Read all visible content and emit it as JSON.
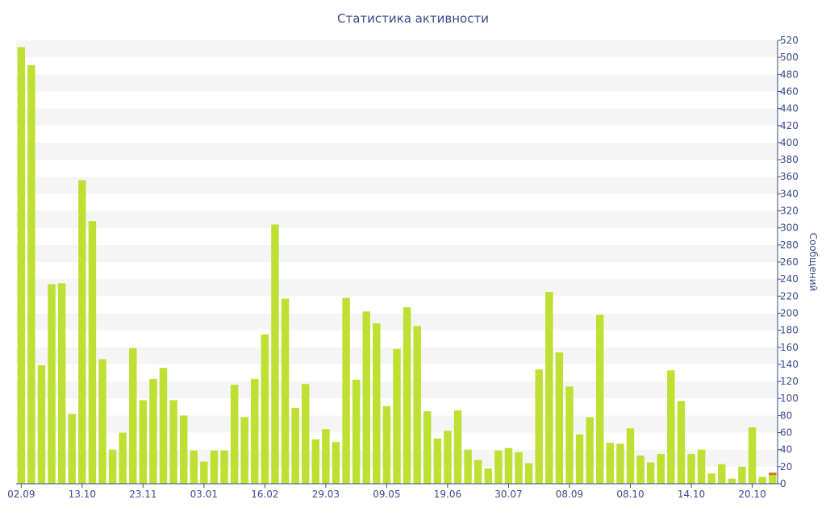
{
  "chart_data": {
    "type": "bar",
    "title": "Статистика активности",
    "ylabel": "Сообщений",
    "xlabel": "",
    "ylim": [
      0,
      520
    ],
    "ytick_step": 20,
    "grid": "horizontal alternating bands",
    "bar_color": "#bde033",
    "highlight_color": "#e36b2b",
    "x_tick_labels": [
      {
        "index": 0,
        "label": "02.09"
      },
      {
        "index": 6,
        "label": "13.10"
      },
      {
        "index": 12,
        "label": "23.11"
      },
      {
        "index": 18,
        "label": "03.01"
      },
      {
        "index": 24,
        "label": "16.02"
      },
      {
        "index": 30,
        "label": "29.03"
      },
      {
        "index": 36,
        "label": "09.05"
      },
      {
        "index": 42,
        "label": "19.06"
      },
      {
        "index": 48,
        "label": "30.07"
      },
      {
        "index": 54,
        "label": "08.09"
      },
      {
        "index": 60,
        "label": "08.10"
      },
      {
        "index": 66,
        "label": "14.10"
      },
      {
        "index": 72,
        "label": "20.10"
      }
    ],
    "values": [
      512,
      491,
      139,
      234,
      235,
      82,
      356,
      308,
      146,
      40,
      60,
      159,
      98,
      123,
      136,
      98,
      80,
      39,
      26,
      39,
      39,
      116,
      78,
      123,
      175,
      304,
      217,
      89,
      117,
      52,
      64,
      49,
      218,
      122,
      202,
      188,
      91,
      158,
      207,
      185,
      85,
      53,
      62,
      86,
      40,
      28,
      18,
      39,
      42,
      37,
      24,
      134,
      225,
      154,
      114,
      58,
      78,
      198,
      48,
      47,
      65,
      33,
      25,
      35,
      133,
      97,
      35,
      40,
      12,
      23,
      6,
      20,
      66,
      8,
      13
    ],
    "highlight_last": true
  }
}
